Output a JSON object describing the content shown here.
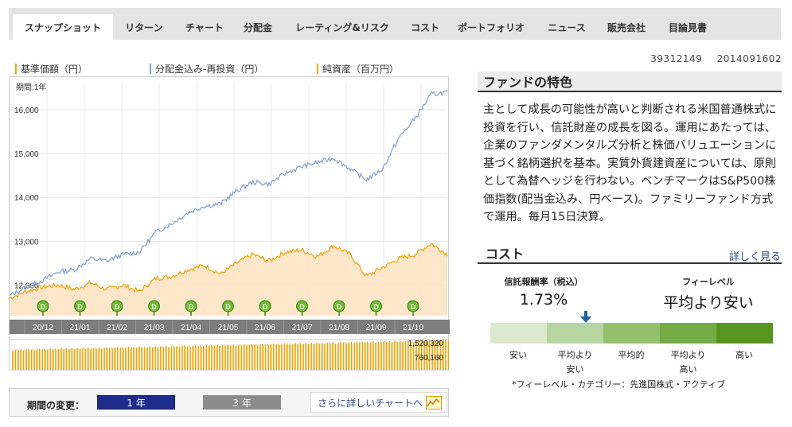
{
  "tabs": [
    {
      "label": "スナップショット",
      "active": true
    },
    {
      "label": "リターン",
      "active": false
    },
    {
      "label": "チャート",
      "active": false
    },
    {
      "label": "分配金",
      "active": false
    },
    {
      "label": "レーティング&リスク",
      "active": false
    },
    {
      "label": "コスト",
      "active": false
    },
    {
      "label": "ポートフォリオ",
      "active": false
    },
    {
      "label": "ニュース",
      "active": false
    },
    {
      "label": "販売会社",
      "active": false
    },
    {
      "label": "目論見書",
      "active": false
    }
  ],
  "legend": {
    "nav_label": "基準価額（円）",
    "reinvest_label": "分配金込み-再投資（円）",
    "assets_label": "純資産（百万円）"
  },
  "colors": {
    "nav": "#f5a300",
    "reinvest": "#7a9fcf",
    "assets": "#f2a100",
    "bar_dark": "#7d7d7d",
    "period_active": "#1f2d8a",
    "period_inactive": "#8c8c8c"
  },
  "chart_data": {
    "type": "line",
    "period_caption": "期間:1年",
    "y_ticks": [
      "16,000",
      "15,000",
      "14,000",
      "13,000",
      "12,000"
    ],
    "y_tick_values": [
      16000,
      15000,
      14000,
      13000,
      12000
    ],
    "ylim": [
      11300,
      16600
    ],
    "months": [
      "20/12",
      "21/01",
      "21/02",
      "21/03",
      "21/04",
      "21/05",
      "21/06",
      "21/07",
      "21/08",
      "21/09",
      "21/10"
    ],
    "dividend_marker": "D",
    "dividend_count": 11,
    "series": [
      {
        "name": "分配金込み-再投資（円）",
        "values": [
          11750,
          11950,
          12100,
          12300,
          12350,
          12600,
          12550,
          12700,
          12750,
          13200,
          13400,
          13650,
          13800,
          13850,
          14150,
          14350,
          14300,
          14550,
          14700,
          14800,
          14900,
          14650,
          14400,
          14650,
          15350,
          15800,
          16350,
          16400
        ]
      },
      {
        "name": "基準価額（円）",
        "values": [
          11700,
          11850,
          11950,
          12000,
          11900,
          12050,
          11900,
          12000,
          11850,
          12150,
          12200,
          12350,
          12450,
          12250,
          12500,
          12700,
          12550,
          12750,
          12800,
          12650,
          12900,
          12700,
          12200,
          12400,
          12600,
          12700,
          12950,
          12700
        ]
      }
    ],
    "volume_labels": [
      "1,520,320",
      "760,160"
    ]
  },
  "period": {
    "label": "期間の変更：",
    "options": [
      "1 年",
      "3 年"
    ],
    "more_chart": "さらに詳しいチャートへ"
  },
  "fund": {
    "code1": "39312149",
    "code2": "2014091602",
    "features_title": "ファンドの特色",
    "features_text": "主として成長の可能性が高いと判断される米国普通株式に投資を行い、信託財産の成長を図る。運用にあたっては、企業のファンダメンタルズ分析と株価バリュエーションに基づく銘柄選択を基本。実質外貨建資産については、原則として為替ヘッジを行わない。ベンチマークはS&P500株価指数(配当金込み、円ベース)。ファミリーファンド方式で運用。毎月15日決算。"
  },
  "cost": {
    "title": "コスト",
    "more": "詳しく見る",
    "fee_label": "信託報酬率（税込）",
    "fee_value": "1.73%",
    "level_label": "フィーレベル",
    "level_value": "平均より安い",
    "scale": [
      "安い",
      "平均より安い",
      "平均的",
      "平均より高い",
      "高い"
    ],
    "scale_colors": [
      "#dbe9cf",
      "#b7d59f",
      "#93c06d",
      "#74ab47",
      "#589420"
    ],
    "marker_position_index": 1,
    "note": "*フィーレベル・カテゴリー：先進国株式・アクティブ"
  }
}
